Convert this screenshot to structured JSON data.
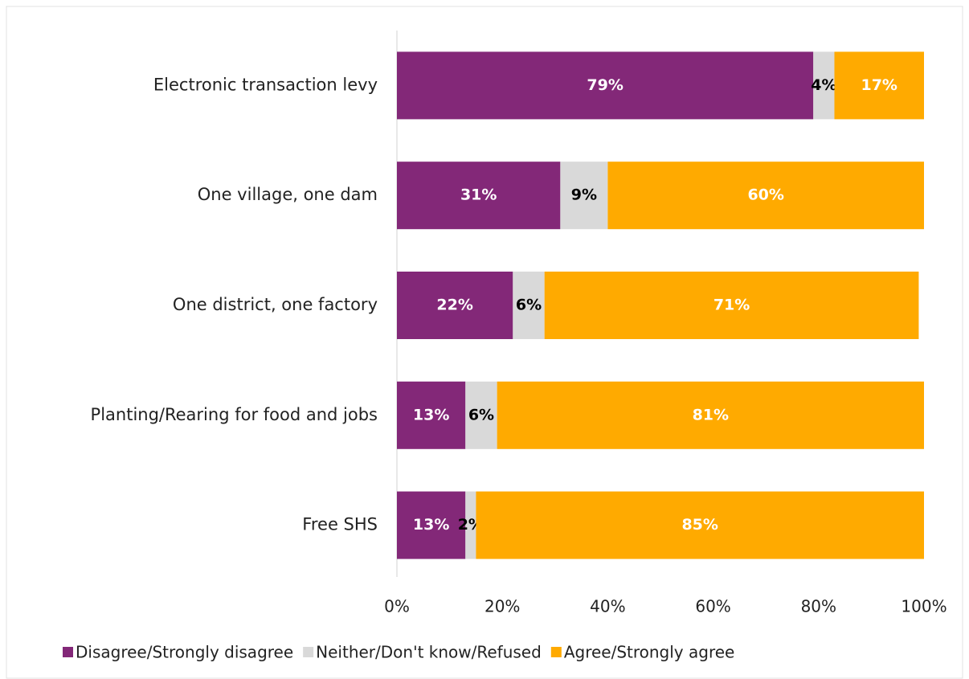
{
  "chart_data": {
    "type": "stacked_barh",
    "categories": [
      "Electronic transaction levy",
      "One village, one dam",
      "One district, one factory",
      "Planting/Rearing for food and jobs",
      "Free SHS"
    ],
    "series": [
      {
        "name": "Disagree/Strongly disagree",
        "color": "#832878",
        "values": [
          79,
          31,
          22,
          13,
          13
        ],
        "value_labels": [
          "79%",
          "31%",
          "22%",
          "13%",
          "13%"
        ]
      },
      {
        "name": "Neither/Don't know/Refused",
        "color": "#d9d9d9",
        "values": [
          4,
          9,
          6,
          6,
          2
        ],
        "value_labels": [
          "4%",
          "9%",
          "6%",
          "6%",
          "2%"
        ]
      },
      {
        "name": "Agree/Strongly agree",
        "color": "#ffaa00",
        "values": [
          17,
          60,
          71,
          81,
          85
        ],
        "value_labels": [
          "17%",
          "60%",
          "71%",
          "81%",
          "85%"
        ]
      }
    ],
    "xlim": [
      0,
      100
    ],
    "xticks": [
      {
        "value": 0,
        "label": "0%"
      },
      {
        "value": 20,
        "label": "20%"
      },
      {
        "value": 40,
        "label": "40%"
      },
      {
        "value": 60,
        "label": "60%"
      },
      {
        "value": 80,
        "label": "80%"
      },
      {
        "value": 100,
        "label": "100%"
      }
    ],
    "legend": "bottom"
  }
}
